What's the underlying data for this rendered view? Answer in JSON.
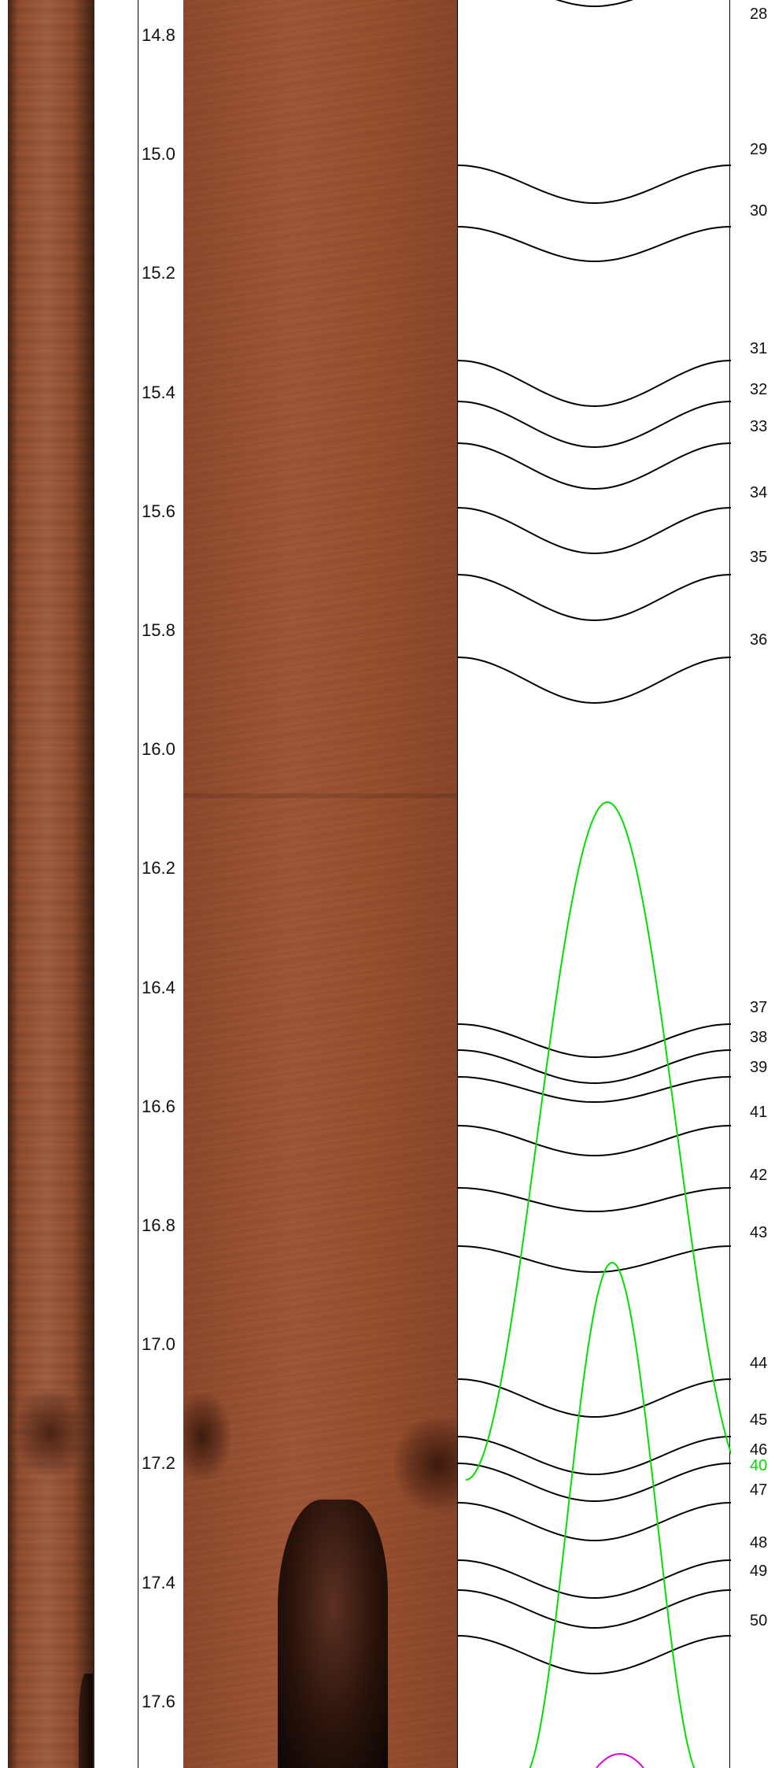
{
  "depth_ticks": [
    "14.8",
    "15.0",
    "15.2",
    "15.4",
    "15.6",
    "15.8",
    "16.0",
    "16.2",
    "16.4",
    "16.6",
    "16.8",
    "17.0",
    "17.2",
    "17.4",
    "17.6"
  ],
  "colors": {
    "pick": "#000000",
    "highlight_pick": "#00e000",
    "secondary_pick": "#e000e0"
  },
  "picks": [
    {
      "label": "28"
    },
    {
      "label": "29"
    },
    {
      "label": "30"
    },
    {
      "label": "31"
    },
    {
      "label": "32"
    },
    {
      "label": "33"
    },
    {
      "label": "34"
    },
    {
      "label": "35"
    },
    {
      "label": "36"
    },
    {
      "label": "37"
    },
    {
      "label": "38"
    },
    {
      "label": "39"
    },
    {
      "label": "41"
    },
    {
      "label": "42"
    },
    {
      "label": "43"
    },
    {
      "label": "44"
    },
    {
      "label": "45"
    },
    {
      "label": "46"
    },
    {
      "label": "40"
    },
    {
      "label": "47"
    },
    {
      "label": "48"
    },
    {
      "label": "49"
    },
    {
      "label": "50"
    }
  ]
}
